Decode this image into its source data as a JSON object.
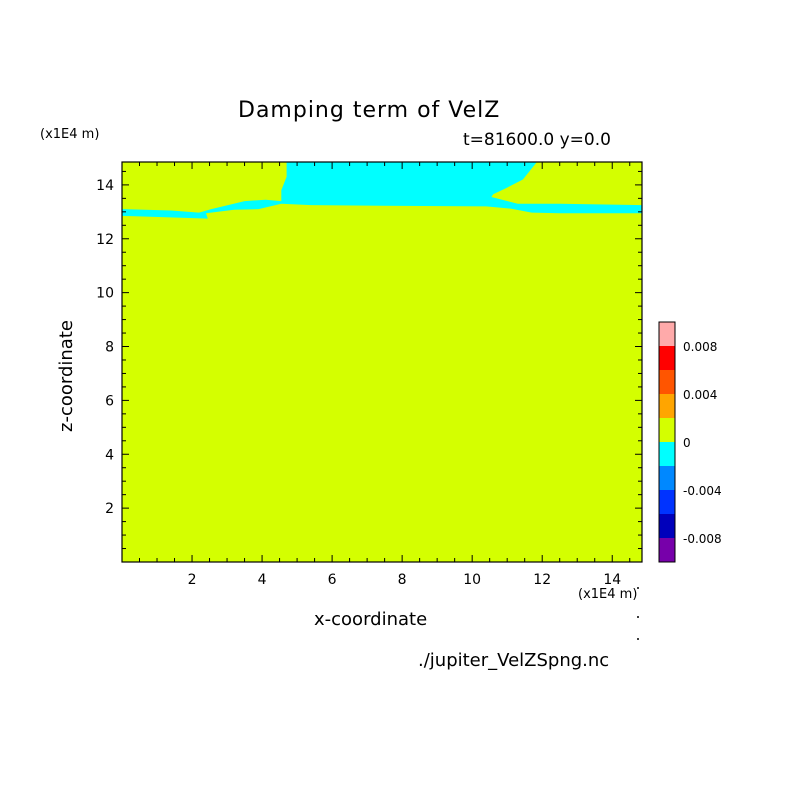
{
  "chart_data": {
    "type": "heatmap",
    "title": "Damping term of VelZ",
    "subtitle": "t=81600.0 y=0.0",
    "xlabel": "x-coordinate",
    "ylabel": "z-coordinate",
    "x_scale_note": "(x1E4 m)",
    "y_scale_note": "(x1E4 m)",
    "xlim": [
      0,
      14.85
    ],
    "ylim": [
      0,
      14.85
    ],
    "xticks": [
      2,
      4,
      6,
      8,
      10,
      12,
      14
    ],
    "yticks": [
      2,
      4,
      6,
      8,
      10,
      12,
      14
    ],
    "background_value_range": [
      0,
      0.002
    ],
    "background_color": "#d4ff00",
    "regions": [
      {
        "value_range": [
          -0.002,
          0
        ],
        "color": "#00ffff",
        "boundary_x_z": [
          [
            4.7,
            14.85
          ],
          [
            11.85,
            14.85
          ],
          [
            11.45,
            14.2
          ],
          [
            11.0,
            13.9
          ],
          [
            10.6,
            13.65
          ],
          [
            10.55,
            13.55
          ],
          [
            11.3,
            13.3
          ],
          [
            12.5,
            13.3
          ],
          [
            14.85,
            13.25
          ],
          [
            14.85,
            12.95
          ],
          [
            12.5,
            12.95
          ],
          [
            11.7,
            12.97
          ],
          [
            11.1,
            13.12
          ],
          [
            10.4,
            13.2
          ],
          [
            8,
            13.22
          ],
          [
            5.4,
            13.25
          ],
          [
            4.55,
            13.3
          ],
          [
            3.9,
            13.1
          ],
          [
            3.2,
            13.08
          ],
          [
            2.4,
            12.95
          ],
          [
            2.45,
            12.75
          ],
          [
            1.7,
            12.78
          ],
          [
            0,
            12.85
          ],
          [
            0,
            13.1
          ],
          [
            1.4,
            13.05
          ],
          [
            2.2,
            12.97
          ],
          [
            2.55,
            13.1
          ],
          [
            3.5,
            13.4
          ],
          [
            4.1,
            13.45
          ],
          [
            4.55,
            13.4
          ],
          [
            4.55,
            13.8
          ],
          [
            4.7,
            14.3
          ]
        ]
      }
    ],
    "colorbar": {
      "levels": [
        {
          "range": [
            -0.01,
            -0.008
          ],
          "color": "#7700aa"
        },
        {
          "range": [
            -0.008,
            -0.006
          ],
          "color": "#0000bb"
        },
        {
          "range": [
            -0.006,
            -0.004
          ],
          "color": "#0033ff"
        },
        {
          "range": [
            -0.004,
            -0.002
          ],
          "color": "#0088ff"
        },
        {
          "range": [
            -0.002,
            0
          ],
          "color": "#00ffff"
        },
        {
          "range": [
            0,
            0.002
          ],
          "color": "#d4ff00"
        },
        {
          "range": [
            0.002,
            0.004
          ],
          "color": "#ffa500"
        },
        {
          "range": [
            0.004,
            0.006
          ],
          "color": "#ff5500"
        },
        {
          "range": [
            0.006,
            0.008
          ],
          "color": "#ff0000"
        },
        {
          "range": [
            0.008,
            0.01
          ],
          "color": "#ffaaaa"
        }
      ],
      "tick_labels": [
        {
          "value": -0.008,
          "label": "-0.008"
        },
        {
          "value": -0.004,
          "label": "-0.004"
        },
        {
          "value": 0,
          "label": "0"
        },
        {
          "value": 0.004,
          "label": "0.004"
        },
        {
          "value": 0.008,
          "label": "0.008"
        }
      ]
    }
  },
  "footer": {
    "filename": "./jupiter_VelZSpng.nc"
  }
}
